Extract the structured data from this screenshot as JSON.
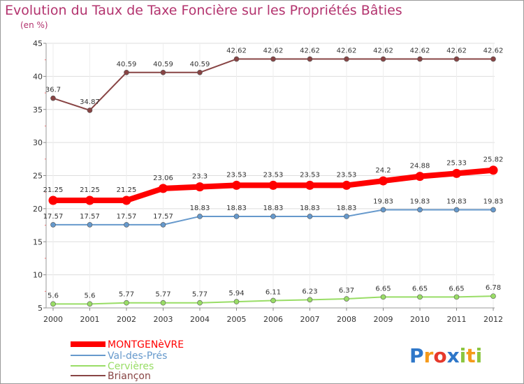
{
  "title": "Evolution du Taux de Taxe Foncière sur les Propriétés Bâties",
  "subtitle": "(en %)",
  "logo": {
    "letters": [
      "P",
      "r",
      "o",
      "x",
      "i",
      "t",
      "i"
    ],
    "colors": [
      "#2e77c9",
      "#f59a1a",
      "#e6392b",
      "#2e77c9",
      "#8cc63f",
      "#f59a1a",
      "#8cc63f"
    ]
  },
  "chart_data": {
    "type": "line",
    "x": [
      "2000",
      "2001",
      "2002",
      "2003",
      "2004",
      "2005",
      "2006",
      "2007",
      "2008",
      "2009",
      "2010",
      "2011",
      "2012"
    ],
    "ylim": [
      5,
      45
    ],
    "yticks": [
      "5",
      "10",
      "15",
      "20",
      "25",
      "30",
      "35",
      "40",
      "45"
    ],
    "grid": true,
    "legend_position": "bottom-left",
    "series": [
      {
        "name": "MONTGENèVRE",
        "color": "#ff0000",
        "values": [
          21.25,
          21.25,
          21.25,
          23.06,
          23.3,
          23.53,
          23.53,
          23.53,
          23.53,
          24.2,
          24.88,
          25.33,
          25.82
        ],
        "labels": [
          "21.25",
          "21.25",
          "21.25",
          "23.06",
          "23.3",
          "23.53",
          "23.53",
          "23.53",
          "23.53",
          "24.2",
          "24.88",
          "25.33",
          "25.82"
        ]
      },
      {
        "name": "Val-des-Prés",
        "color": "#6699cc",
        "values": [
          17.57,
          17.57,
          17.57,
          17.57,
          18.83,
          18.83,
          18.83,
          18.83,
          18.83,
          19.83,
          19.83,
          19.83,
          19.83
        ],
        "labels": [
          "17.57",
          "17.57",
          "17.57",
          "17.57",
          "18.83",
          "18.83",
          "18.83",
          "18.83",
          "18.83",
          "19.83",
          "19.83",
          "19.83",
          "19.83"
        ]
      },
      {
        "name": "Cervières",
        "color": "#99dd66",
        "values": [
          5.6,
          5.6,
          5.77,
          5.77,
          5.77,
          5.94,
          6.11,
          6.23,
          6.37,
          6.65,
          6.65,
          6.65,
          6.78
        ],
        "labels": [
          "5.6",
          "5.6",
          "5.77",
          "5.77",
          "5.77",
          "5.94",
          "6.11",
          "6.23",
          "6.37",
          "6.65",
          "6.65",
          "6.65",
          "6.78"
        ]
      },
      {
        "name": "Briançon",
        "color": "#884444",
        "values": [
          36.7,
          34.87,
          40.59,
          40.59,
          40.59,
          42.62,
          42.62,
          42.62,
          42.62,
          42.62,
          42.62,
          42.62,
          42.62
        ],
        "labels": [
          "36.7",
          "34.87",
          "40.59",
          "40.59",
          "40.59",
          "42.62",
          "42.62",
          "42.62",
          "42.62",
          "42.62",
          "42.62",
          "42.62",
          "42.62"
        ]
      }
    ]
  }
}
